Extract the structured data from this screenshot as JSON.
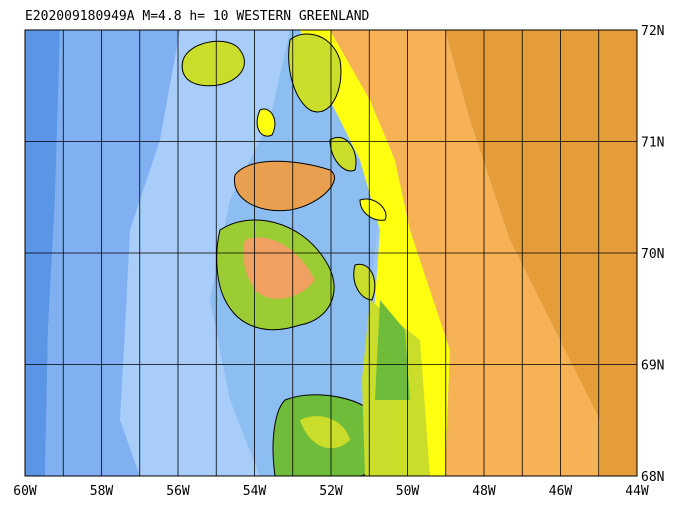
{
  "title": "E202009180949A M=4.8 h= 10 WESTERN GREENLAND",
  "lon_labels": [
    "60W",
    "58W",
    "56W",
    "54W",
    "52W",
    "50W",
    "48W",
    "46W",
    "44W"
  ],
  "lat_labels": [
    "72N",
    "71N",
    "70N",
    "69N",
    "68N"
  ]
}
